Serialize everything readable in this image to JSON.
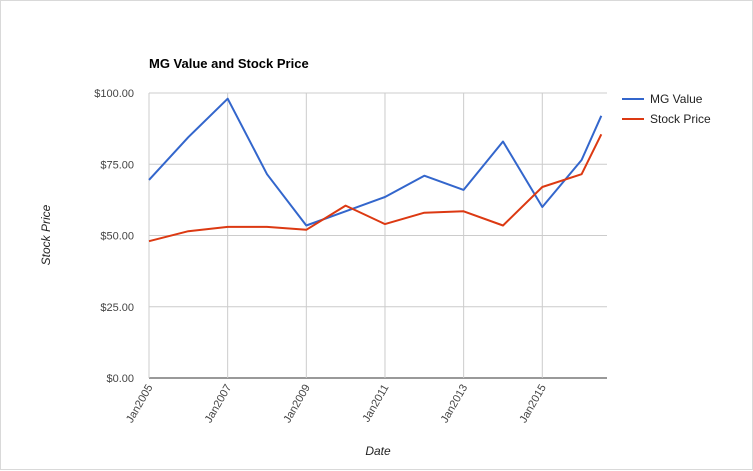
{
  "chart_data": {
    "type": "line",
    "title": "MG Value and Stock Price",
    "xlabel": "Date",
    "ylabel": "Stock Price",
    "x": [
      "2005",
      "2006",
      "2007",
      "2008",
      "2009",
      "2010",
      "2011",
      "2012",
      "2013",
      "2014",
      "2015",
      "2016",
      "2016-07"
    ],
    "x_ticks": [
      "Jan2005",
      "Jan2007",
      "Jan2009",
      "Jan2011",
      "Jan2013",
      "Jan2015"
    ],
    "y_ticks": [
      "$0.00",
      "$25.00",
      "$50.00",
      "$75.00",
      "$100.00"
    ],
    "ylim": [
      0,
      100
    ],
    "grid": true,
    "legend_position": "right",
    "series": [
      {
        "name": "MG Value",
        "color": "#3366cc",
        "values": [
          69.5,
          84.5,
          98.0,
          71.5,
          53.5,
          58.5,
          63.5,
          71.0,
          66.0,
          83.0,
          60.0,
          76.5,
          92.0
        ]
      },
      {
        "name": "Stock Price",
        "color": "#dc3912",
        "values": [
          48.0,
          51.5,
          53.0,
          53.0,
          52.0,
          60.5,
          54.0,
          58.0,
          58.5,
          53.5,
          67.0,
          71.5,
          85.5
        ]
      }
    ]
  }
}
